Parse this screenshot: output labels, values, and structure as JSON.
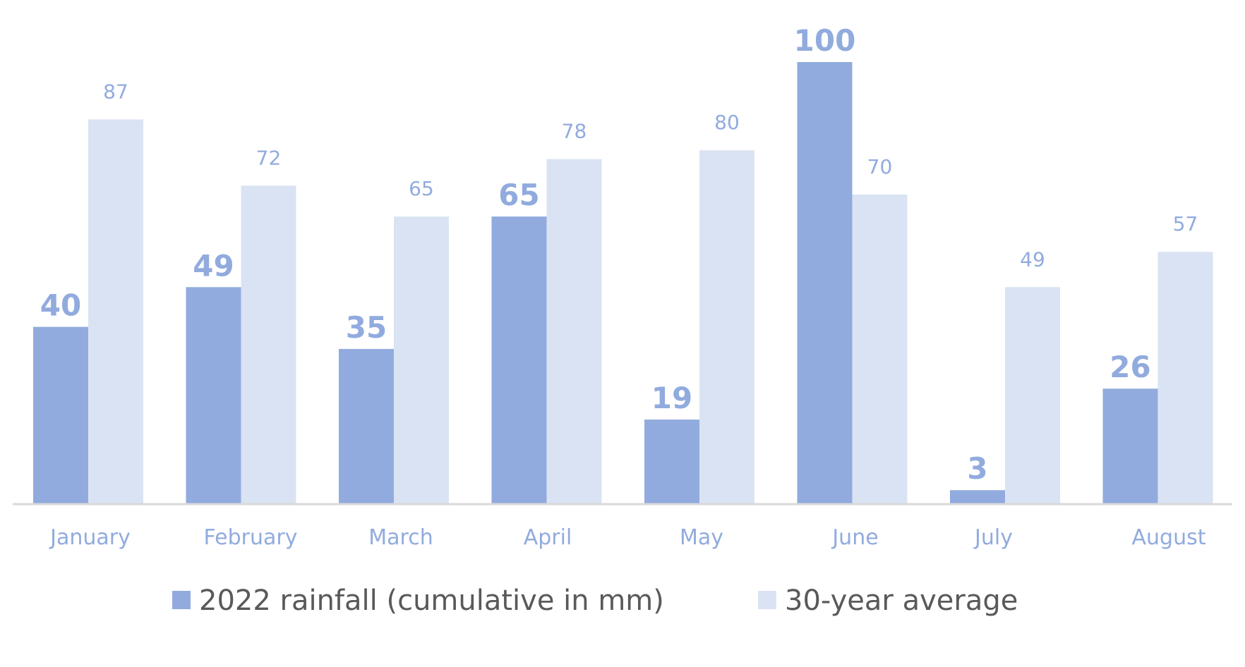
{
  "chart_data": {
    "type": "bar",
    "title": "",
    "xlabel": "",
    "ylabel": "",
    "categories": [
      "January",
      "February",
      "March",
      "April",
      "May",
      "June",
      "July",
      "August"
    ],
    "series": [
      {
        "name": "2022 rainfall (cumulative in mm)",
        "values": [
          40,
          49,
          35,
          65,
          19,
          100,
          3,
          26
        ],
        "color": "#91abde"
      },
      {
        "name": "30-year average",
        "values": [
          87,
          72,
          65,
          78,
          80,
          70,
          49,
          57
        ],
        "color": "#dae3f3"
      }
    ],
    "ylim": [
      0,
      100
    ],
    "grid": false,
    "legend": "bottom",
    "label_color": "#91abde",
    "axis_color": "#d9d9d9",
    "legend_text_color": "#595959"
  }
}
